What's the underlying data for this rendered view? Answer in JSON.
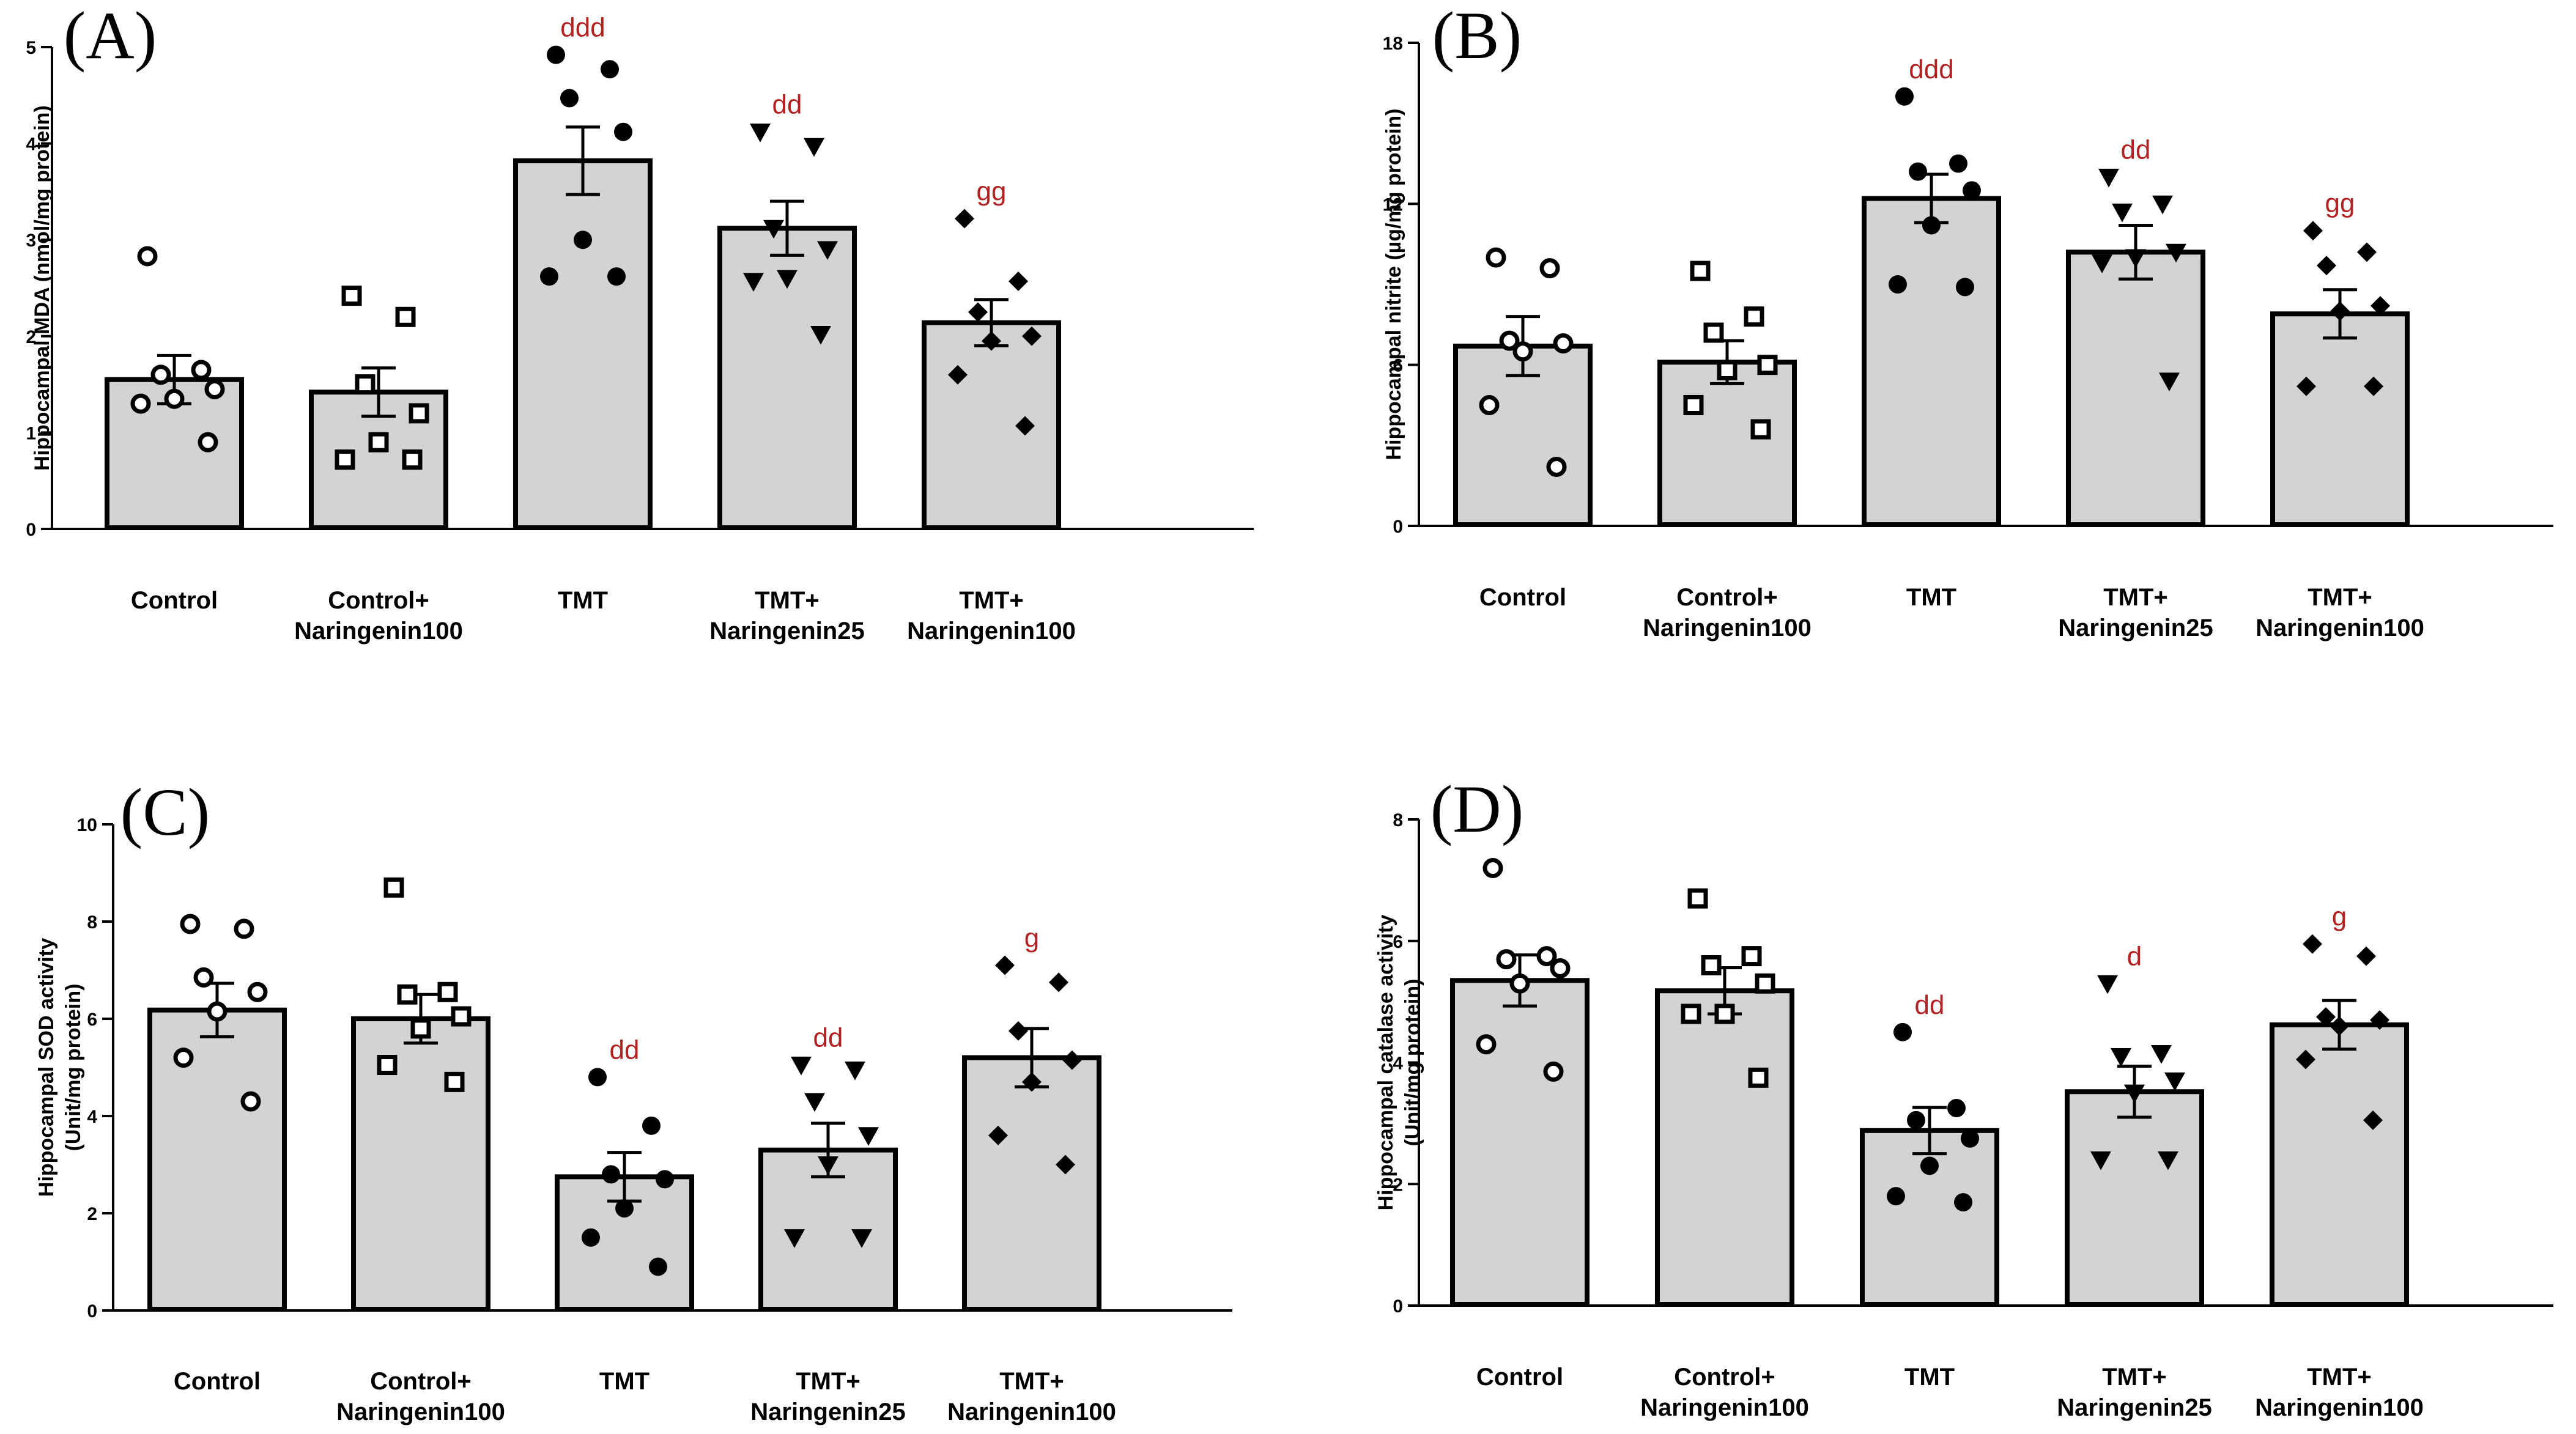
{
  "colors": {
    "bar_fill": "#d3d3d3",
    "stroke": "#000000",
    "significance": "#b22222",
    "open_marker": "#ffffff",
    "filled_marker": "#000000"
  },
  "chart_data": [
    {
      "type": "bar",
      "panel": "(A)",
      "ylabel": "Hippocampal MDA (nmol/mg protein)",
      "ylim": [
        0,
        5
      ],
      "yticks": [
        "0",
        "1",
        "2",
        "3",
        "4",
        "5"
      ],
      "categories": [
        [
          "Control"
        ],
        [
          "Control+",
          "Naringenin100"
        ],
        [
          "TMT"
        ],
        [
          "TMT+",
          "Naringenin25"
        ],
        [
          "TMT+",
          "Naringenin100"
        ]
      ],
      "markers": [
        "circle-open",
        "square-open",
        "circle-filled",
        "triangle-down-filled",
        "diamond-filled"
      ],
      "values": [
        1.55,
        1.42,
        3.82,
        3.12,
        2.14
      ],
      "sem": [
        0.25,
        0.25,
        0.35,
        0.28,
        0.24
      ],
      "significance": [
        "",
        "",
        "ddd",
        "dd",
        "gg"
      ],
      "points": [
        [
          2.83,
          1.65,
          1.6,
          1.45,
          1.35,
          1.3,
          0.9
        ],
        [
          2.42,
          2.2,
          1.5,
          1.2,
          0.9,
          0.72,
          0.72
        ],
        [
          4.92,
          4.77,
          4.47,
          4.12,
          3.0,
          2.62,
          2.62
        ],
        [
          4.12,
          3.97,
          3.12,
          2.9,
          2.6,
          2.57,
          2.02
        ],
        [
          3.22,
          2.57,
          2.25,
          2.0,
          1.95,
          1.6,
          1.07
        ]
      ]
    },
    {
      "type": "bar",
      "panel": "(B)",
      "ylabel": "Hippocampal nitrite (µg/mg protein)",
      "ylim": [
        0,
        18
      ],
      "yticks": [
        "0",
        "6",
        "12",
        "18"
      ],
      "categories": [
        [
          "Control"
        ],
        [
          "Control+",
          "Naringenin100"
        ],
        [
          "TMT"
        ],
        [
          "TMT+",
          "Naringenin25"
        ],
        [
          "TMT+",
          "Naringenin100"
        ]
      ],
      "markers": [
        "circle-open",
        "square-open",
        "circle-filled",
        "triangle-down-filled",
        "diamond-filled"
      ],
      "values": [
        6.7,
        6.1,
        12.2,
        10.2,
        7.9
      ],
      "sem": [
        1.1,
        0.8,
        0.9,
        1.0,
        0.9
      ],
      "significance": [
        "",
        "",
        "ddd",
        "dd",
        "gg"
      ],
      "points": [
        [
          10.0,
          9.6,
          6.9,
          6.8,
          6.5,
          4.5,
          2.2
        ],
        [
          9.5,
          7.8,
          7.2,
          6.0,
          5.8,
          4.5,
          3.6
        ],
        [
          16.0,
          13.5,
          13.2,
          12.5,
          11.2,
          9.0,
          8.9
        ],
        [
          13.0,
          12.0,
          11.7,
          10.2,
          10.0,
          9.8,
          5.4
        ],
        [
          11.0,
          10.2,
          9.7,
          8.2,
          8.0,
          5.2,
          5.2
        ]
      ]
    },
    {
      "type": "bar",
      "panel": "(C)",
      "ylabel": "Hippocampal SOD activity (Unit/mg protein)",
      "ylabel_lines": [
        "Hippocampal SOD activity",
        "(Unit/mg protein)"
      ],
      "ylim": [
        0,
        10
      ],
      "yticks": [
        "0",
        "2",
        "4",
        "6",
        "8",
        "10"
      ],
      "categories": [
        [
          "Control"
        ],
        [
          "Control+",
          "Naringenin100"
        ],
        [
          "TMT"
        ],
        [
          "TMT+",
          "Naringenin25"
        ],
        [
          "TMT+",
          "Naringenin100"
        ]
      ],
      "markers": [
        "circle-open",
        "square-open",
        "circle-filled",
        "triangle-down-filled",
        "diamond-filled"
      ],
      "values": [
        6.18,
        6.0,
        2.75,
        3.3,
        5.2
      ],
      "sem": [
        0.55,
        0.5,
        0.5,
        0.55,
        0.6
      ],
      "significance": [
        "",
        "",
        "dd",
        "dd",
        "g"
      ],
      "points": [
        [
          7.95,
          7.85,
          6.85,
          6.55,
          6.15,
          5.2,
          4.3
        ],
        [
          8.7,
          6.55,
          6.5,
          6.05,
          5.8,
          5.05,
          4.7
        ],
        [
          4.8,
          3.8,
          2.8,
          2.7,
          2.1,
          1.5,
          0.9
        ],
        [
          5.05,
          4.95,
          4.3,
          3.6,
          3.0,
          1.5,
          1.5
        ],
        [
          7.1,
          6.75,
          5.75,
          5.15,
          4.7,
          3.6,
          3.0
        ]
      ]
    },
    {
      "type": "bar",
      "panel": "(D)",
      "ylabel": "Hippocampal catalase activity (Unit/mg protein)",
      "ylabel_lines": [
        "Hippocampal catalase activity",
        "(Unit/mg protein)"
      ],
      "ylim": [
        0,
        8
      ],
      "yticks": [
        "0",
        "2",
        "4",
        "6",
        "8"
      ],
      "categories": [
        [
          "Control"
        ],
        [
          "Control+",
          "Naringenin100"
        ],
        [
          "TMT"
        ],
        [
          "TMT+",
          "Naringenin25"
        ],
        [
          "TMT+",
          "Naringenin100"
        ]
      ],
      "markers": [
        "circle-open",
        "square-open",
        "circle-filled",
        "triangle-down-filled",
        "diamond-filled"
      ],
      "values": [
        5.35,
        5.18,
        2.88,
        3.52,
        4.62
      ],
      "sem": [
        0.42,
        0.38,
        0.38,
        0.42,
        0.4
      ],
      "significance": [
        "",
        "",
        "dd",
        "d",
        "g"
      ],
      "points": [
        [
          7.2,
          5.75,
          5.7,
          5.55,
          5.3,
          4.3,
          3.85
        ],
        [
          6.7,
          5.75,
          5.6,
          5.3,
          4.8,
          4.8,
          3.75
        ],
        [
          4.5,
          3.25,
          3.05,
          2.75,
          2.3,
          1.8,
          1.7
        ],
        [
          5.3,
          4.15,
          4.1,
          3.7,
          3.5,
          2.4,
          2.4
        ],
        [
          5.95,
          5.75,
          4.75,
          4.7,
          4.6,
          4.05,
          3.05
        ]
      ]
    }
  ]
}
